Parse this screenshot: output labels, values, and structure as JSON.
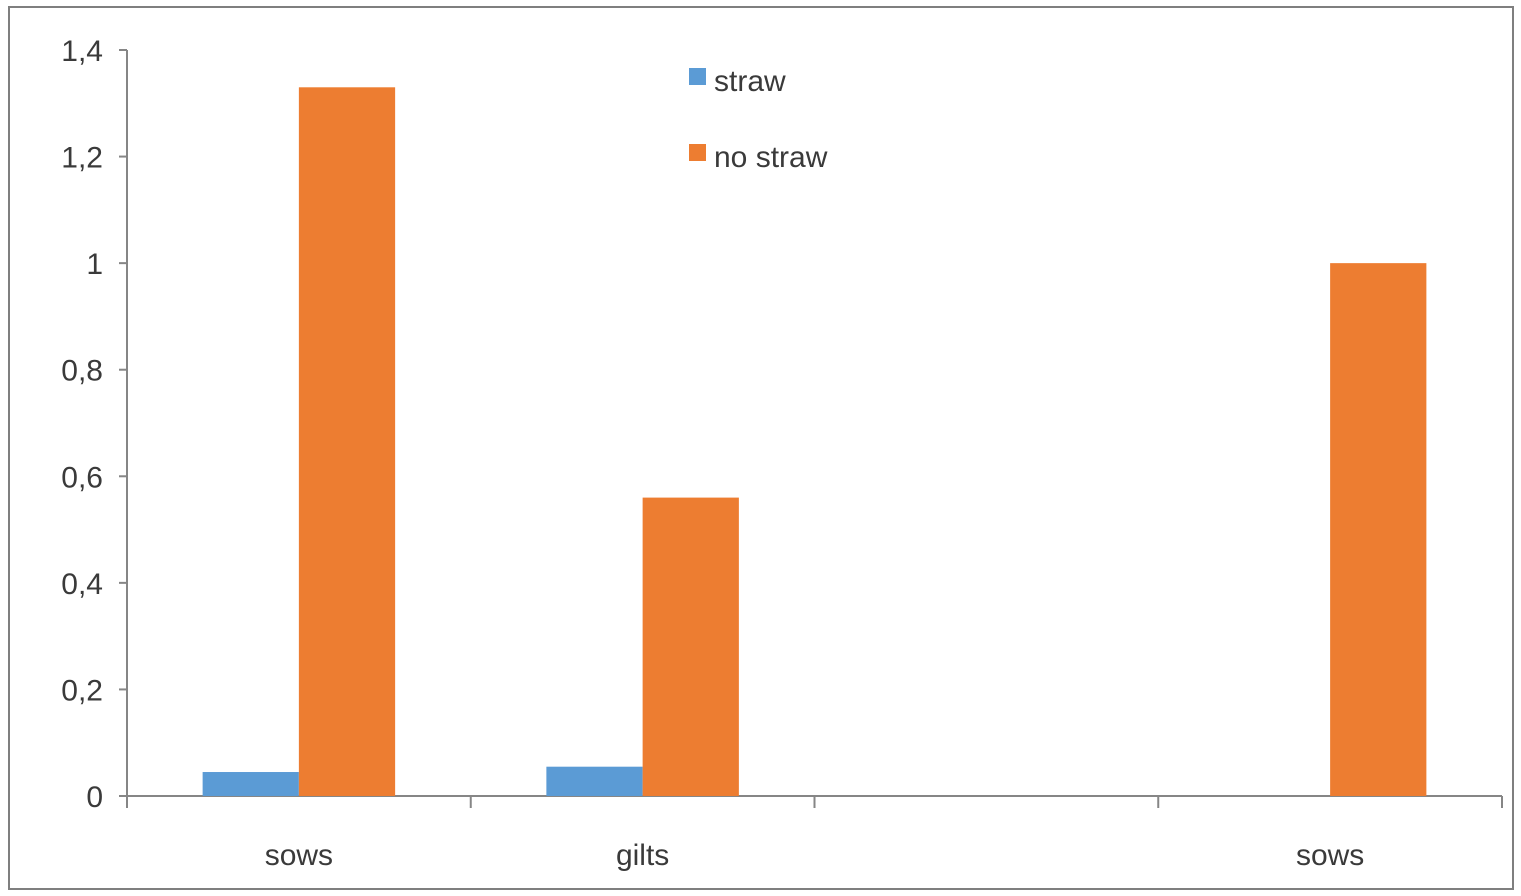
{
  "chart_data": {
    "type": "bar",
    "categories": [
      "sows",
      "gilts",
      "",
      "sows"
    ],
    "series": [
      {
        "name": "straw",
        "color": "#5B9BD5",
        "values": [
          0.045,
          0.055,
          null,
          null
        ]
      },
      {
        "name": "no straw",
        "color": "#ED7D31",
        "values": [
          1.33,
          0.56,
          null,
          1.0
        ]
      }
    ],
    "ylim": [
      0,
      1.4
    ],
    "yticks": [
      0,
      0.2,
      0.4,
      0.6,
      0.8,
      1.0,
      1.2,
      1.4
    ],
    "ytick_labels": [
      "0",
      "0,2",
      "0,4",
      "0,6",
      "0,8",
      "1",
      "1,2",
      "1,4"
    ],
    "grid": false,
    "legend": "top-center",
    "title": "",
    "xlabel": "",
    "ylabel": ""
  }
}
